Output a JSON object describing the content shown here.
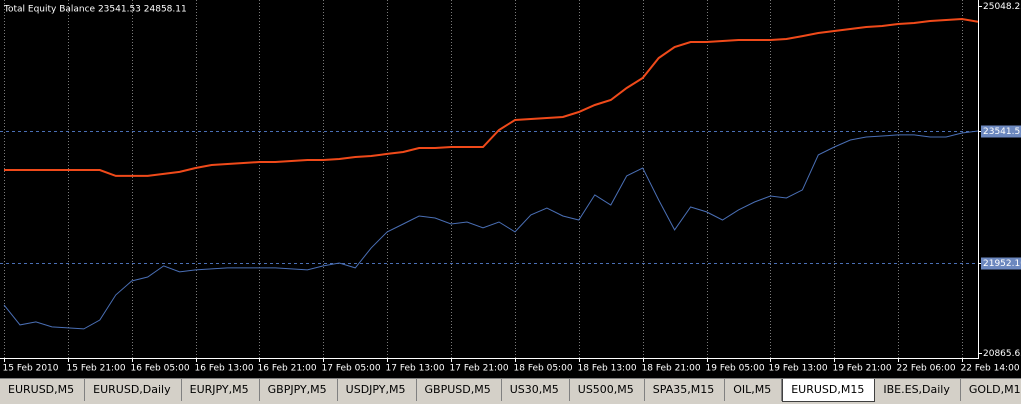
{
  "chart_data": {
    "type": "line",
    "title": "Total Equity Balance 23541.53 24858.11",
    "x": [
      0,
      2,
      4,
      6,
      8,
      10,
      12,
      14,
      16,
      18,
      20,
      22,
      24,
      26,
      28,
      30,
      32,
      34,
      36,
      38,
      40,
      42,
      44,
      46,
      48,
      50,
      52,
      54,
      56,
      58,
      60,
      62,
      64,
      66,
      68,
      70,
      72,
      74,
      76,
      78,
      80,
      82,
      84,
      86,
      88,
      90,
      92,
      94,
      96,
      98,
      100,
      102,
      104,
      106,
      108,
      110,
      112,
      114,
      116,
      118,
      120,
      122
    ],
    "series": [
      {
        "name": "Balance",
        "color": "#f04a1a",
        "values": [
          23072,
          23072,
          23072,
          23072,
          23072,
          23072,
          23072,
          23000,
          23000,
          23000,
          23024,
          23048,
          23096,
          23132,
          23144,
          23156,
          23168,
          23168,
          23180,
          23192,
          23192,
          23204,
          23228,
          23240,
          23265,
          23289,
          23337,
          23337,
          23349,
          23349,
          23349,
          23554,
          23674,
          23686,
          23698,
          23710,
          23771,
          23855,
          23915,
          24060,
          24180,
          24421,
          24554,
          24614,
          24614,
          24626,
          24638,
          24638,
          24638,
          24650,
          24686,
          24723,
          24747,
          24771,
          24795,
          24807,
          24831,
          24843,
          24867,
          24879,
          24891,
          24858
        ]
      },
      {
        "name": "Equity",
        "color": "#4a6fb5",
        "values": [
          21445,
          21204,
          21240,
          21180,
          21168,
          21156,
          21264,
          21566,
          21734,
          21782,
          21915,
          21843,
          21867,
          21879,
          21891,
          21891,
          21891,
          21891,
          21879,
          21867,
          21915,
          21951,
          21891,
          22132,
          22325,
          22421,
          22517,
          22493,
          22421,
          22445,
          22373,
          22445,
          22325,
          22530,
          22614,
          22517,
          22469,
          22771,
          22650,
          23000,
          23096,
          22710,
          22349,
          22626,
          22566,
          22469,
          22590,
          22686,
          22758,
          22734,
          22831,
          23253,
          23349,
          23433,
          23469,
          23481,
          23494,
          23494,
          23469,
          23469,
          23518,
          23542
        ]
      }
    ],
    "xlim": [
      0,
      122
    ],
    "xticks": [
      {
        "value": 0,
        "label": "15 Feb 2010"
      },
      {
        "value": 8,
        "label": "15 Feb 21:00"
      },
      {
        "value": 16,
        "label": "16 Feb 05:00"
      },
      {
        "value": 24,
        "label": "16 Feb 13:00"
      },
      {
        "value": 32,
        "label": "16 Feb 21:00"
      },
      {
        "value": 40,
        "label": "17 Feb 05:00"
      },
      {
        "value": 48,
        "label": "17 Feb 13:00"
      },
      {
        "value": 56,
        "label": "17 Feb 21:00"
      },
      {
        "value": 64,
        "label": "18 Feb 05:00"
      },
      {
        "value": 72,
        "label": "18 Feb 13:00"
      },
      {
        "value": 80,
        "label": "18 Feb 21:00"
      },
      {
        "value": 88,
        "label": "19 Feb 05:00"
      },
      {
        "value": 96,
        "label": "19 Feb 13:00"
      },
      {
        "value": 104,
        "label": "19 Feb 21:00"
      },
      {
        "value": 112,
        "label": "22 Feb 06:00"
      },
      {
        "value": 120,
        "label": "22 Feb 14:00"
      }
    ],
    "ylim": [
      20865.65,
      25048.23
    ],
    "yticks": [
      25048.23,
      23541.53,
      {
        "value": 21952.1,
        "label": "21952.10"
      },
      20865.65
    ],
    "grid": true
  },
  "tabs": [
    "EURUSD,M5",
    "EURUSD,Daily",
    "EURJPY,M5",
    "GBPJPY,M5",
    "USDJPY,M5",
    "GBPUSD,M5",
    "US30,M5",
    "US500,M5",
    "SPA35,M15",
    "OIL,M5",
    "EURUSD,M15",
    "IBE.ES,Daily",
    "GOLD,M15"
  ],
  "active_tab": 10
}
